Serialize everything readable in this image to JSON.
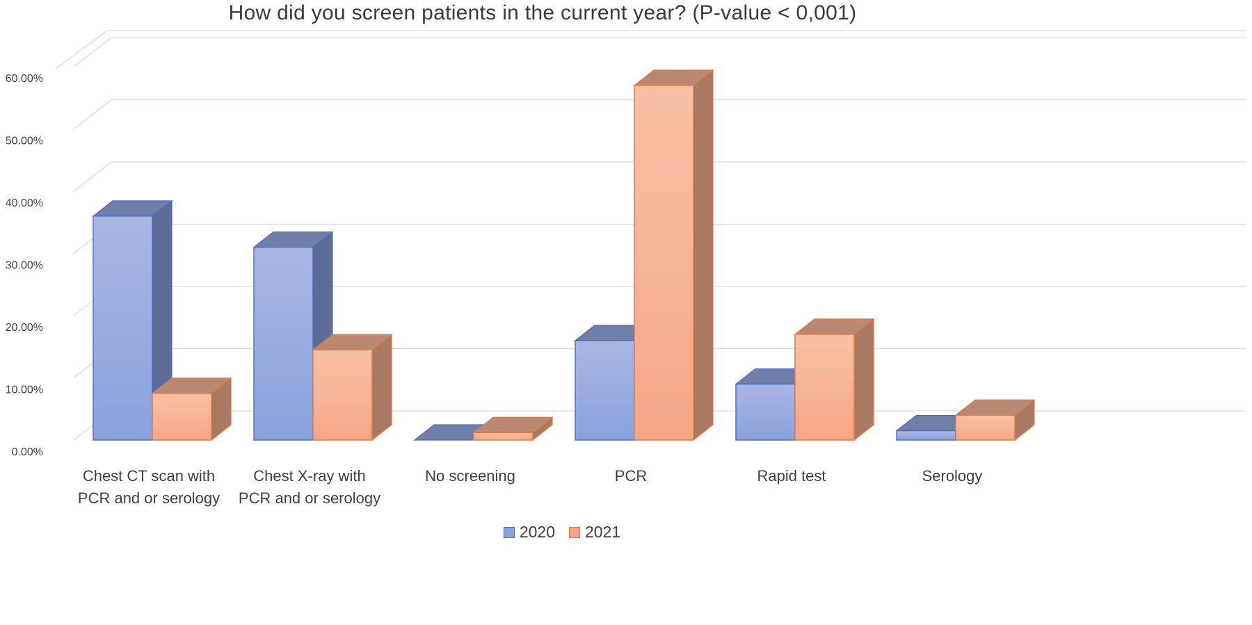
{
  "chart_data": {
    "type": "bar",
    "title": "How did you screen patients in the current year? (P-value < 0,001)",
    "xlabel": "",
    "ylabel": "",
    "ylim": [
      0,
      0.6
    ],
    "y_tick_labels": [
      "0.00%",
      "10.00%",
      "20.00%",
      "30.00%",
      "40.00%",
      "50.00%",
      "60.00%"
    ],
    "grid": true,
    "style": "3d-clustered-column",
    "legend_position": "bottom",
    "categories": [
      [
        "Chest CT scan with",
        "PCR and or serology"
      ],
      [
        "Chest X-ray with",
        "PCR and or serology"
      ],
      [
        "No screening"
      ],
      [
        "PCR"
      ],
      [
        "Rapid test"
      ],
      [
        "Serology"
      ]
    ],
    "series": [
      {
        "name": "2020",
        "values": [
          0.36,
          0.31,
          0.0,
          0.16,
          0.09,
          0.015
        ]
      },
      {
        "name": "2021",
        "values": [
          0.075,
          0.145,
          0.012,
          0.57,
          0.17,
          0.04
        ]
      }
    ]
  },
  "colors": {
    "series_2020": {
      "front_top": "#aab6e2",
      "front_bottom": "#8aa2dc",
      "side": "#5e6d97",
      "top": "#6f7fa8",
      "border": "#4a6bc4"
    },
    "series_2021": {
      "front_top": "#f7c1a5",
      "front_bottom": "#f5a686",
      "side": "#a87a64",
      "top": "#b98871",
      "border": "#e4783d"
    },
    "gridline": "#d9d9d9",
    "text": "#404040"
  }
}
